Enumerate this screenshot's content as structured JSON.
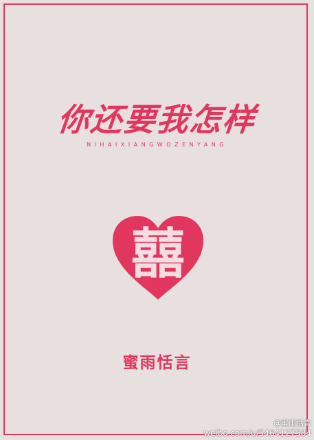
{
  "cover": {
    "title": "你还要我怎样",
    "pinyin": "NIHAIXIANGWOZENYANG",
    "emblem_text": "囍",
    "author": "蜜雨恬言"
  },
  "watermark": {
    "line1": "@蜜雨恬言",
    "line2": "weibo.com/u/5464127584"
  },
  "colors": {
    "accent": "#e1375f",
    "background": "#e8dfdf"
  }
}
